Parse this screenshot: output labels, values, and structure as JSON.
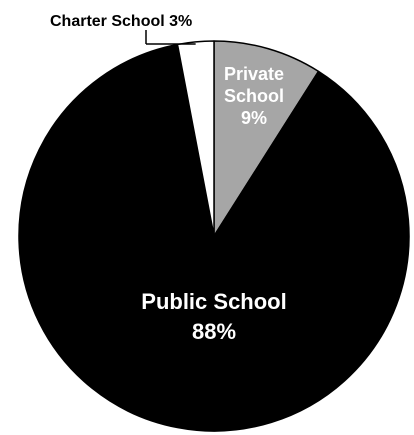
{
  "chart_data": {
    "type": "pie",
    "title": "",
    "colors": {
      "background": "#ffffff",
      "outline": "#000000"
    },
    "slices": [
      {
        "label": "Private School",
        "label_lines": [
          "Private",
          "School",
          "9%"
        ],
        "value": 9,
        "value_label": "9%",
        "color": "#a6a6a6",
        "text_color": "#ffffff"
      },
      {
        "label": "Public School",
        "label_lines": [
          "Public School",
          "88%"
        ],
        "value": 88,
        "value_label": "88%",
        "color": "#000000",
        "text_color": "#ffffff"
      },
      {
        "label": "Charter School",
        "label_lines": [
          "Charter School 3%"
        ],
        "value": 3,
        "value_label": "3%",
        "color": "#ffffff",
        "text_color": "#000000"
      }
    ]
  }
}
